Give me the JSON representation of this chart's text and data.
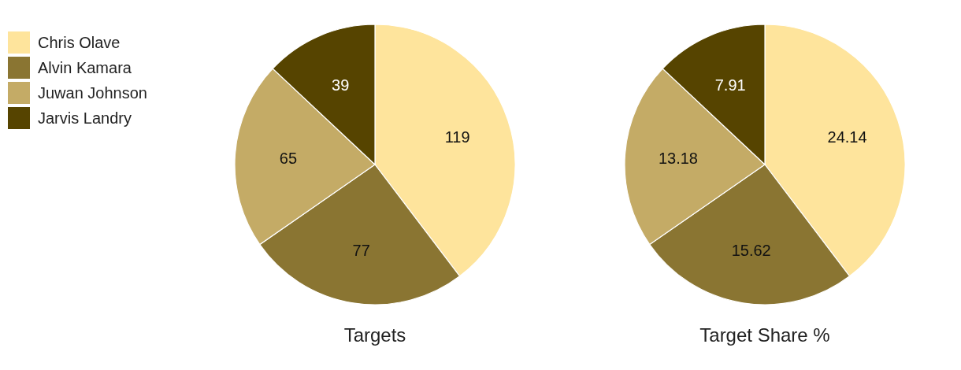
{
  "chart_data": [
    {
      "type": "pie",
      "title": "Targets",
      "categories": [
        "Chris Olave",
        "Alvin Kamara",
        "Juwan Johnson",
        "Jarvis Landry"
      ],
      "values": [
        119,
        77,
        65,
        39
      ],
      "colors": [
        "#fee49c",
        "#8a7532",
        "#c4ab66",
        "#564400"
      ],
      "data_labels": true,
      "legend": "left"
    },
    {
      "type": "pie",
      "title": "Target Share %",
      "categories": [
        null,
        null,
        null,
        null
      ],
      "values": [
        24.14,
        15.62,
        13.18,
        7.91
      ],
      "colors": [
        "#fee49c",
        "#8a7532",
        "#c4ab66",
        "#564400"
      ],
      "data_labels": true
    }
  ]
}
